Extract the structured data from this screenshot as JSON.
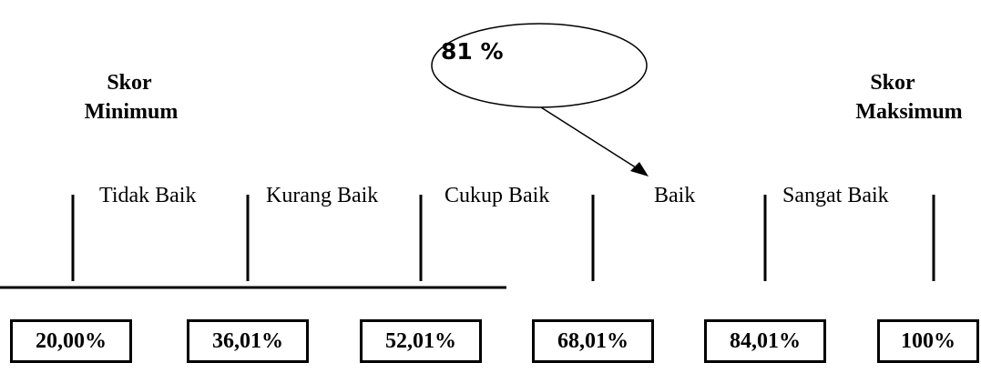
{
  "diagram": {
    "bubble_value": "81 %",
    "min_label": "Skor\nMinimum",
    "max_label": "Skor\nMaksimum",
    "categories": [
      "Tidak Baik",
      "Kurang Baik",
      "Cukup Baik",
      "Baik",
      "Sangat Baik"
    ],
    "scale_values": [
      "20,00%",
      "36,01%",
      "52,01%",
      "68,01%",
      "84,01%",
      "100%"
    ]
  }
}
